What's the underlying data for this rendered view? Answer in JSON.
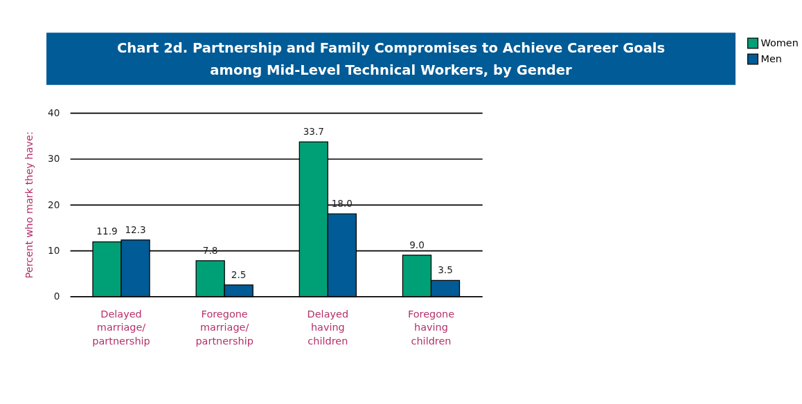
{
  "chart_data": {
    "type": "bar",
    "title": "Chart 2d. Partnership and Family Compromises to Achieve Career Goals\namong Mid-Level Technical Workers, by Gender",
    "ylabel": "Percent who mark they have:",
    "categories": [
      "Delayed\nmarriage/\npartnership",
      "Foregone\nmarriage/\npartnership",
      "Delayed\nhaving\nchildren",
      "Foregone\nhaving\nchildren"
    ],
    "series": [
      {
        "name": "Women",
        "color": "#00a077",
        "values": [
          11.9,
          7.8,
          33.7,
          9.0
        ],
        "value_labels": [
          "11.9",
          "7.8",
          "33.7",
          "9.0"
        ]
      },
      {
        "name": "Men",
        "color": "#005b96",
        "values": [
          12.3,
          2.5,
          18.0,
          3.5
        ],
        "value_labels": [
          "12.3",
          "2.5",
          "18.0",
          "3.5"
        ]
      }
    ],
    "ylim": [
      0,
      40
    ],
    "yticks": [
      0,
      10,
      20,
      30,
      40
    ],
    "grid": "y",
    "legend": "right"
  }
}
